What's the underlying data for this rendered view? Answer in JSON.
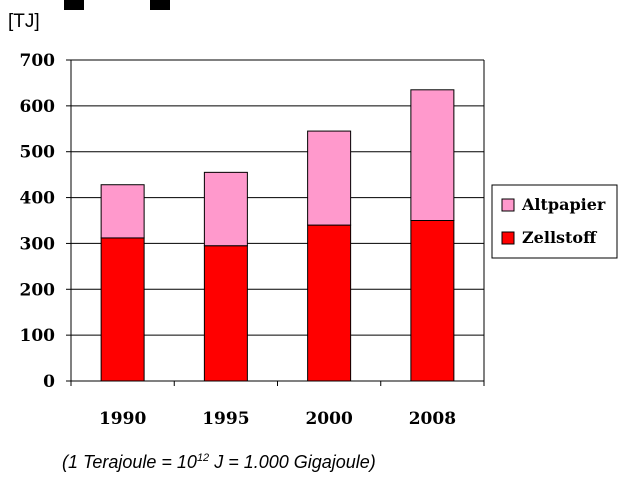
{
  "chart_data": {
    "type": "bar",
    "stacked": true,
    "unit_label": "[TJ]",
    "categories": [
      "1990",
      "1995",
      "2000",
      "2008"
    ],
    "series": [
      {
        "name": "Zellstoff",
        "values": [
          312,
          295,
          340,
          350
        ],
        "color": "#ff0000"
      },
      {
        "name": "Altpapier",
        "values": [
          116,
          160,
          205,
          285
        ],
        "color": "#ff99cc"
      }
    ],
    "ylim": [
      0,
      700
    ],
    "yticks": [
      0,
      100,
      200,
      300,
      400,
      500,
      600,
      700
    ],
    "grid": true,
    "legend_position": "right",
    "legend_order": [
      "Altpapier",
      "Zellstoff"
    ]
  },
  "footnote": {
    "pre": "(1 Terajoule = 10",
    "sup": "12",
    "post": " J = 1.000 Gigajoule)"
  }
}
